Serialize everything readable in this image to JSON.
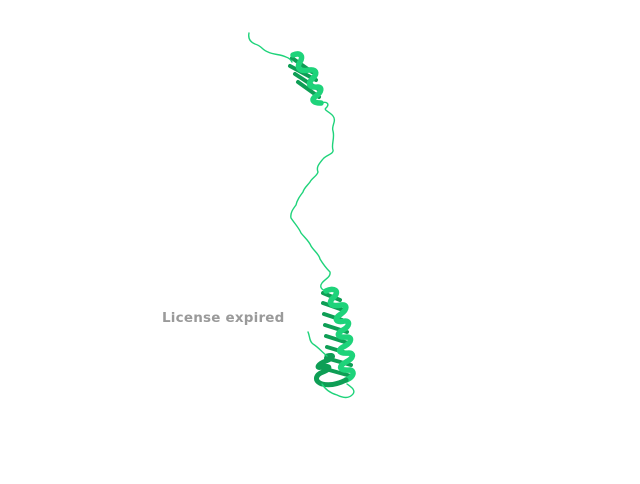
{
  "scene": {
    "structure_color": "#1ed37a",
    "structure_dark": "#0e9e55",
    "structure_light": "#5ef0a4",
    "background": "#ffffff"
  },
  "overlay": {
    "license_text": "License expired"
  }
}
